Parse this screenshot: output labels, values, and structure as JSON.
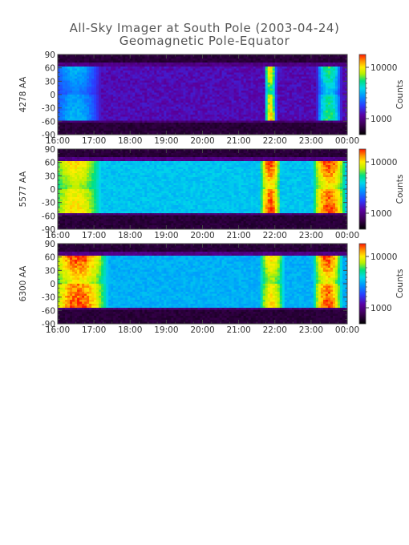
{
  "title": "All-Sky Imager at South Pole (2003-04-24)",
  "subtitle": "Geomagnetic Pole-Equator",
  "chart_data": [
    {
      "type": "heatmap",
      "ylabel": "4278 AA",
      "x_ticks": [
        "16:00",
        "17:00",
        "18:00",
        "19:00",
        "20:00",
        "21:00",
        "22:00",
        "23:00",
        "00:00"
      ],
      "y_ticks": [
        90,
        60,
        30,
        0,
        -30,
        -60,
        -90
      ],
      "ylim": [
        -90,
        90
      ],
      "colorbar": {
        "label": "Counts",
        "scale": "log",
        "ticks": [
          "10000",
          "1000"
        ]
      },
      "features": [
        {
          "time_start": "21:45",
          "time_end": "22:00",
          "intensity": "high"
        },
        {
          "time_start": "23:15",
          "time_end": "23:45",
          "intensity": "medium"
        },
        {
          "time_start": "16:00",
          "time_end": "17:00",
          "intensity": "low"
        }
      ]
    },
    {
      "type": "heatmap",
      "ylabel": "5577 AA",
      "x_ticks": [
        "16:00",
        "17:00",
        "18:00",
        "19:00",
        "20:00",
        "21:00",
        "22:00",
        "23:00",
        "00:00"
      ],
      "y_ticks": [
        90,
        60,
        30,
        0,
        -30,
        -60,
        -90
      ],
      "ylim": [
        -90,
        90
      ],
      "colorbar": {
        "label": "Counts",
        "scale": "log",
        "ticks": [
          "10000",
          "1000"
        ]
      },
      "features": [
        {
          "time_start": "16:00",
          "time_end": "17:00",
          "intensity": "high"
        },
        {
          "time_start": "21:40",
          "time_end": "22:05",
          "intensity": "very-high"
        },
        {
          "time_start": "23:10",
          "time_end": "23:50",
          "intensity": "very-high"
        }
      ]
    },
    {
      "type": "heatmap",
      "ylabel": "6300 AA",
      "x_ticks": [
        "16:00",
        "17:00",
        "18:00",
        "19:00",
        "20:00",
        "21:00",
        "22:00",
        "23:00",
        "00:00"
      ],
      "y_ticks": [
        90,
        60,
        30,
        0,
        -30,
        -60,
        -90
      ],
      "ylim": [
        -90,
        90
      ],
      "colorbar": {
        "label": "Counts",
        "scale": "log",
        "ticks": [
          "10000",
          "1000"
        ]
      },
      "features": [
        {
          "time_start": "16:00",
          "time_end": "17:10",
          "intensity": "very-high"
        },
        {
          "time_start": "21:40",
          "time_end": "22:10",
          "intensity": "high"
        },
        {
          "time_start": "23:10",
          "time_end": "23:45",
          "intensity": "very-high"
        }
      ]
    }
  ],
  "colors": {
    "map_scale": [
      "#000000",
      "#3a0050",
      "#5a00a0",
      "#2a3cff",
      "#0094ff",
      "#00d8e8",
      "#00e080",
      "#b8f000",
      "#ffee00",
      "#ff9000",
      "#ff1800"
    ]
  }
}
